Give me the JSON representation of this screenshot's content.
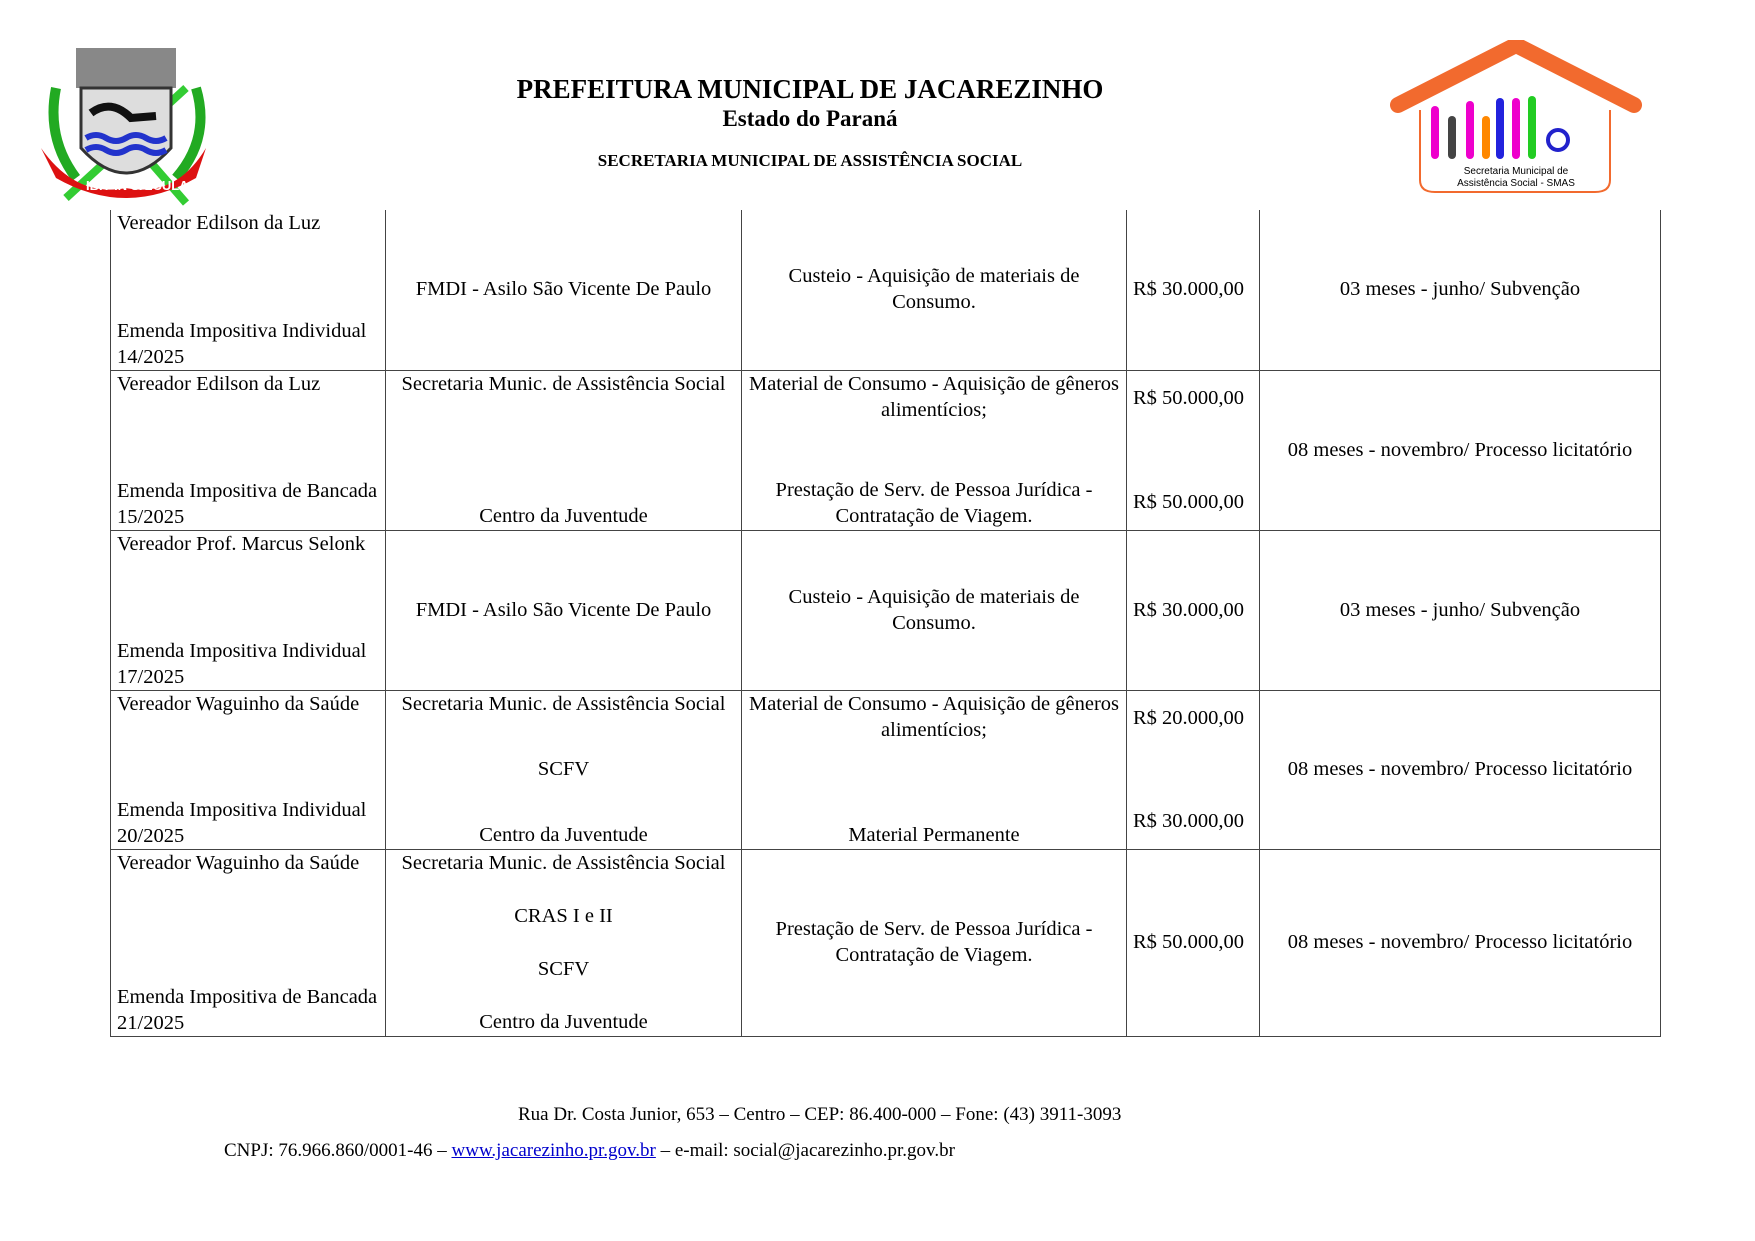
{
  "header": {
    "title": "PREFEITURA MUNICIPAL DE JACAREZINHO",
    "state": "Estado do Paraná",
    "department": "SECRETARIA MUNICIPAL DE ASSISTÊNCIA SOCIAL",
    "crest_motto": "IBIT IN SÆCULA",
    "smas_logo_text": "Secretaria Municipal de Assistência Social - SMAS"
  },
  "rows": [
    {
      "c1_top": "Vereador Edilson da Luz",
      "c1_bottom": "Emenda Impositiva Individual 14/2025",
      "c2": [
        "FMDI - Asilo São Vicente De Paulo"
      ],
      "c3": [
        "Custeio - Aquisição de materiais de Consumo."
      ],
      "c4": [
        "R$ 30.000,00"
      ],
      "c5": "03 meses - junho/ Subvenção"
    },
    {
      "c1_top": "Vereador Edilson da Luz",
      "c1_bottom": "Emenda Impositiva de Bancada 15/2025",
      "c2": [
        "Secretaria Munic. de Assistência Social",
        "Centro da Juventude"
      ],
      "c3": [
        "Material de Consumo - Aquisição de gêneros alimentícios;",
        "Prestação de Serv. de Pessoa Jurídica - Contratação de Viagem."
      ],
      "c4": [
        "R$ 50.000,00",
        "R$ 50.000,00"
      ],
      "c5": "08 meses - novembro/ Processo licitatório"
    },
    {
      "c1_top": "Vereador Prof. Marcus Selonk",
      "c1_bottom": "Emenda Impositiva Individual 17/2025",
      "c2": [
        "FMDI - Asilo São Vicente De Paulo"
      ],
      "c3": [
        "Custeio - Aquisição de materiais de Consumo."
      ],
      "c4": [
        "R$ 30.000,00"
      ],
      "c5": "03 meses - junho/ Subvenção"
    },
    {
      "c1_top": "Vereador   Waguinho da Saúde",
      "c1_bottom": "Emenda Impositiva Individual 20/2025",
      "c2": [
        "Secretaria Munic. de Assistência Social",
        "SCFV",
        "Centro da Juventude"
      ],
      "c3": [
        "Material de Consumo - Aquisição de gêneros alimentícios;",
        "Material Permanente"
      ],
      "c4": [
        "R$ 20.000,00",
        "R$ 30.000,00"
      ],
      "c5": "08 meses - novembro/ Processo licitatório"
    },
    {
      "c1_top": "Vereador   Waguinho da Saúde",
      "c1_bottom": "Emenda Impositiva de Bancada 21/2025",
      "c2": [
        "Secretaria Munic. de Assistência Social",
        "CRAS I e II",
        "SCFV",
        "Centro da Juventude"
      ],
      "c3": [
        "Prestação de Serv. de Pessoa Jurídica - Contratação de Viagem."
      ],
      "c4": [
        "R$ 50.000,00"
      ],
      "c5": "08 meses - novembro/ Processo licitatório"
    }
  ],
  "footer": {
    "address": "Rua Dr. Costa Junior, 653 – Centro – CEP: 86.400-000 – Fone: (43) 3911-3093",
    "cnpj": "CNPJ: 76.966.860/0001-46 –",
    "website": "www.jacarezinho.pr.gov.br",
    "email": "– e-mail: social@jacarezinho.pr.gov.br"
  }
}
